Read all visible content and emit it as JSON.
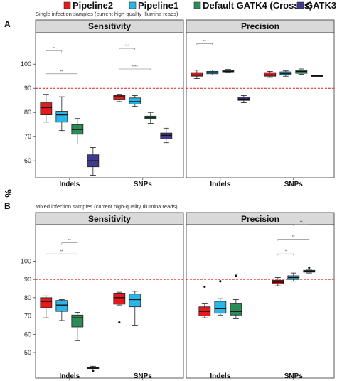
{
  "legend": [
    {
      "name": "Pipeline2",
      "color": "#e41a1c"
    },
    {
      "name": "Pipeline1",
      "color": "#29b6e8"
    },
    {
      "name": "Default GATK4 (Crosses)",
      "color": "#2e8b57"
    },
    {
      "name": "GATK3",
      "color": "#3f3b8c"
    }
  ],
  "y_axis_label": "%",
  "threshold_line": 90,
  "chart_data": [
    {
      "panel_letter": "A",
      "subtitle": "Single infection samples (current high-quality Illumina reads)",
      "type": "box",
      "ylim": [
        53,
        113
      ],
      "yticks": [
        60,
        70,
        80,
        90,
        100
      ],
      "facets": [
        {
          "title": "Sensitivity",
          "categories": [
            "Indels",
            "SNPs"
          ],
          "series": [
            {
              "name": "Pipeline2",
              "boxes": [
                {
                  "min": 76,
                  "q1": 79,
                  "median": 82,
                  "q3": 84,
                  "max": 87.5
                },
                {
                  "min": 84.5,
                  "q1": 85.5,
                  "median": 86.5,
                  "q3": 87,
                  "max": 87.5
                }
              ]
            },
            {
              "name": "Pipeline1",
              "boxes": [
                {
                  "min": 72.5,
                  "q1": 76,
                  "median": 79,
                  "q3": 80.5,
                  "max": 86.5
                },
                {
                  "min": 82.5,
                  "q1": 83.5,
                  "median": 84.5,
                  "q3": 86,
                  "max": 87
                }
              ]
            },
            {
              "name": "Default GATK4 (Crosses)",
              "boxes": [
                {
                  "min": 67,
                  "q1": 71,
                  "median": 73,
                  "q3": 75,
                  "max": 77.5
                },
                {
                  "min": 75.5,
                  "q1": 77.5,
                  "median": 78,
                  "q3": 78.5,
                  "max": 80
                }
              ]
            },
            {
              "name": "GATK3",
              "boxes": [
                {
                  "min": 54,
                  "q1": 57.5,
                  "median": 60,
                  "q3": 62.5,
                  "max": 65.5
                },
                {
                  "min": 67.5,
                  "q1": 69,
                  "median": 70.5,
                  "q3": 71.5,
                  "max": 73.5
                }
              ]
            }
          ],
          "outliers": [],
          "brackets": [
            {
              "category": 0,
              "from": 0,
              "to": 1,
              "y": 105.5,
              "label": "*"
            },
            {
              "category": 0,
              "from": 0,
              "to": 2,
              "y": 96,
              "label": "**"
            },
            {
              "category": 1,
              "from": 0,
              "to": 1,
              "y": 106.5,
              "label": "***"
            },
            {
              "category": 1,
              "from": 0,
              "to": 2,
              "y": 98,
              "label": "****"
            }
          ]
        },
        {
          "title": "Precision",
          "categories": [
            "Indels",
            "SNPs"
          ],
          "series": [
            {
              "name": "Pipeline2",
              "boxes": [
                {
                  "min": 94,
                  "q1": 95,
                  "median": 95.5,
                  "q3": 96.5,
                  "max": 97.5
                },
                {
                  "min": 94.5,
                  "q1": 95,
                  "median": 95.5,
                  "q3": 96.5,
                  "max": 97
                }
              ]
            },
            {
              "name": "Pipeline1",
              "boxes": [
                {
                  "min": 95.5,
                  "q1": 96,
                  "median": 96.5,
                  "q3": 97,
                  "max": 97.5
                },
                {
                  "min": 95,
                  "q1": 95.5,
                  "median": 96,
                  "q3": 96.8,
                  "max": 97.2
                }
              ]
            },
            {
              "name": "Default GATK4 (Crosses)",
              "boxes": [
                {
                  "min": 96.5,
                  "q1": 96.8,
                  "median": 97,
                  "q3": 97.4,
                  "max": 97.8
                },
                {
                  "min": 95.8,
                  "q1": 96.2,
                  "median": 97,
                  "q3": 97.5,
                  "max": 98
                }
              ]
            },
            {
              "name": "GATK3",
              "boxes": [
                {
                  "min": 84,
                  "q1": 85,
                  "median": 85.5,
                  "q3": 86.3,
                  "max": 87
                },
                {
                  "min": 94.8,
                  "q1": 95,
                  "median": 95.2,
                  "q3": 95.3,
                  "max": 95.5
                }
              ]
            }
          ],
          "outliers": [],
          "brackets": [
            {
              "category": 0,
              "from": 0,
              "to": 1,
              "y": 108.5,
              "label": "**"
            }
          ]
        }
      ]
    },
    {
      "panel_letter": "B",
      "subtitle": "Mixed infection samples (current high-quality Illumina reads)",
      "type": "box",
      "ylim": [
        36,
        120
      ],
      "yticks": [
        50,
        60,
        70,
        80,
        90,
        100
      ],
      "facets": [
        {
          "title": "Sensitivity",
          "categories": [
            "Indels",
            "SNPs"
          ],
          "series": [
            {
              "name": "Pipeline2",
              "boxes": [
                {
                  "min": 69,
                  "q1": 74.5,
                  "median": 78,
                  "q3": 80,
                  "max": 81
                },
                {
                  "min": 76,
                  "q1": 76.5,
                  "median": 80,
                  "q3": 82.5,
                  "max": 83
                }
              ]
            },
            {
              "name": "Pipeline1",
              "boxes": [
                {
                  "min": 67.5,
                  "q1": 72.5,
                  "median": 76,
                  "q3": 78.5,
                  "max": 79
                },
                {
                  "min": 65,
                  "q1": 75,
                  "median": 79,
                  "q3": 82,
                  "max": 83.5
                }
              ]
            },
            {
              "name": "Default GATK4 (Crosses)",
              "boxes": [
                {
                  "min": 56.5,
                  "q1": 64,
                  "median": 69,
                  "q3": 70.5,
                  "max": 72
                }
              ]
            },
            {
              "name": "GATK3",
              "boxes": [
                {
                  "min": 40.5,
                  "q1": 41.2,
                  "median": 41.5,
                  "q3": 42,
                  "max": 42.5
                }
              ]
            }
          ],
          "outliers": [
            {
              "category": 1,
              "series": 0,
              "value": 66.5
            },
            {
              "category": 0,
              "series": 3,
              "value": 40
            }
          ],
          "brackets": [
            {
              "category": 0,
              "from": 0,
              "to": 2,
              "y": 104,
              "label": "**"
            },
            {
              "category": 0,
              "from": 1,
              "to": 2,
              "y": 110,
              "label": "**"
            }
          ]
        },
        {
          "title": "Precision",
          "categories": [
            "Indels",
            "SNPs"
          ],
          "series": [
            {
              "name": "Pipeline2",
              "boxes": [
                {
                  "min": 69,
                  "q1": 70,
                  "median": 72.5,
                  "q3": 75,
                  "max": 77
                },
                {
                  "min": 86.5,
                  "q1": 87.5,
                  "median": 88.5,
                  "q3": 89.5,
                  "max": 91
                }
              ]
            },
            {
              "name": "Pipeline1",
              "boxes": [
                {
                  "min": 70.5,
                  "q1": 71.5,
                  "median": 74,
                  "q3": 78,
                  "max": 79.5
                },
                {
                  "min": 89,
                  "q1": 90,
                  "median": 91,
                  "q3": 92,
                  "max": 93.5
                }
              ]
            },
            {
              "name": "Default GATK4 (Crosses)",
              "boxes": [
                {
                  "min": 68.5,
                  "q1": 70.5,
                  "median": 72.5,
                  "q3": 77,
                  "max": 79
                },
                {
                  "min": 93.5,
                  "q1": 94,
                  "median": 94.5,
                  "q3": 95,
                  "max": 95.5
                }
              ]
            }
          ],
          "outliers": [
            {
              "category": 0,
              "series": 0,
              "value": 86
            },
            {
              "category": 0,
              "series": 1,
              "value": 89
            },
            {
              "category": 0,
              "series": 2,
              "value": 92
            },
            {
              "category": 1,
              "series": 2,
              "value": 96.5
            }
          ],
          "brackets": [
            {
              "category": 1,
              "from": 0,
              "to": 1,
              "y": 104,
              "label": "*"
            },
            {
              "category": 1,
              "from": 0,
              "to": 2,
              "y": 112,
              "label": "**"
            },
            {
              "category": 1,
              "from": 1,
              "to": 2,
              "y": 120,
              "label": "**"
            }
          ]
        }
      ]
    }
  ]
}
